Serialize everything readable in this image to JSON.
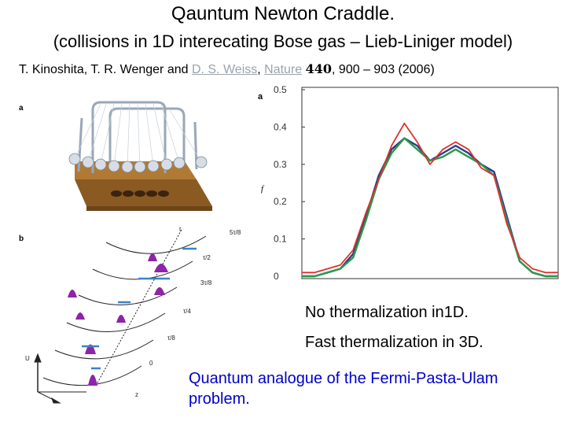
{
  "slide": {
    "title": "Qauntum Newton Craddle.",
    "subtitle": "(collisions in 1D interecating Bose gas – Lieb-Liniger model)",
    "reference": {
      "authors_plain": "T. Kinoshita, T. R. Wenger and ",
      "author_link": "D. S. Weiss",
      "sep": ", ",
      "journal_link": "Nature",
      "volume": "440",
      "pages": ", 900 – 903 (2006)"
    },
    "notes": {
      "line1": "No thermalization in1D.",
      "line2": "Fast thermalization in 3D.",
      "line3": "Quantum analogue of the Fermi-Pasta-Ulam problem."
    }
  },
  "figure_left": {
    "panel_a": "a",
    "panel_b": "b",
    "axis_t": "t",
    "axis_u": "U",
    "axis_z": "z",
    "time_labels": [
      "5τ/8",
      "τ/2",
      "3τ/8",
      "τ/4",
      "τ/8",
      "0"
    ]
  },
  "colors": {
    "red": "#e03030",
    "green": "#2a9a48",
    "blue": "#2a3a8c",
    "purple": "#8e24aa",
    "arrow": "#3b82c4",
    "link": "#9aa3ad",
    "note_blue": "#0000cc"
  },
  "chart_data": {
    "type": "line",
    "panel_label": "a",
    "ylabel": "f",
    "xlabel": "",
    "ylim": [
      0,
      0.5
    ],
    "yticks": [
      0,
      0.1,
      0.2,
      0.3,
      0.4,
      0.5
    ],
    "ytick_labels": [
      "0",
      "0.1",
      "0.2",
      "0.3",
      "0.4",
      "0.5"
    ],
    "x": [
      0,
      0.05,
      0.1,
      0.15,
      0.2,
      0.25,
      0.3,
      0.35,
      0.4,
      0.45,
      0.5,
      0.55,
      0.6,
      0.65,
      0.7,
      0.75,
      0.8,
      0.85,
      0.9,
      0.95,
      1.0
    ],
    "series": [
      {
        "name": "blue",
        "values": [
          0.0,
          0.0,
          0.01,
          0.02,
          0.06,
          0.16,
          0.27,
          0.34,
          0.37,
          0.35,
          0.31,
          0.33,
          0.35,
          0.33,
          0.3,
          0.28,
          0.16,
          0.04,
          0.01,
          0.0,
          0.0
        ]
      },
      {
        "name": "green",
        "values": [
          0.0,
          0.0,
          0.01,
          0.02,
          0.05,
          0.15,
          0.26,
          0.33,
          0.37,
          0.34,
          0.31,
          0.32,
          0.34,
          0.32,
          0.3,
          0.27,
          0.15,
          0.04,
          0.01,
          0.0,
          0.0
        ]
      },
      {
        "name": "red",
        "values": [
          0.01,
          0.01,
          0.02,
          0.03,
          0.07,
          0.17,
          0.26,
          0.35,
          0.41,
          0.36,
          0.3,
          0.34,
          0.36,
          0.34,
          0.29,
          0.27,
          0.14,
          0.05,
          0.02,
          0.01,
          0.01
        ]
      }
    ]
  }
}
